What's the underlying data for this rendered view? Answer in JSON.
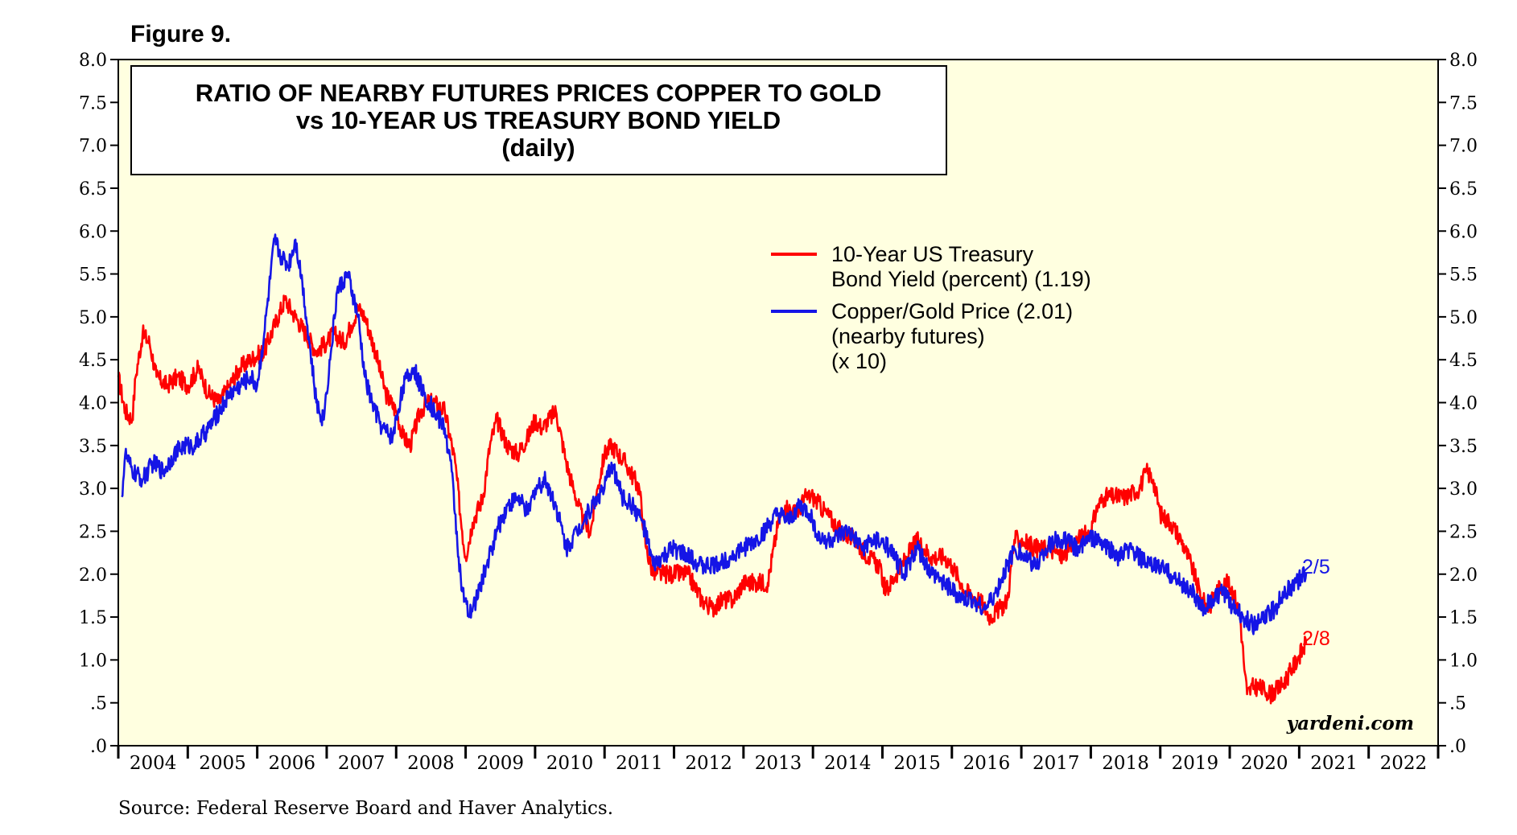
{
  "figure_label": "Figure 9.",
  "title_lines": [
    "RATIO OF NEARBY FUTURES PRICES COPPER TO GOLD",
    "vs 10-YEAR US TREASURY BOND YIELD",
    "(daily)"
  ],
  "legend": {
    "yield_lines": [
      "10-Year US Treasury",
      "Bond Yield (percent) (1.19)"
    ],
    "copper_lines": [
      "Copper/Gold Price (2.01)",
      "(nearby futures)",
      "(x 10)"
    ]
  },
  "end_labels": {
    "copper": "2/5",
    "yield": "2/8"
  },
  "watermark": "yardeni.com",
  "source": "Source: Federal Reserve Board and Haver Analytics.",
  "colors": {
    "yield": "#ff0000",
    "copper": "#1515e6",
    "plot_bg": "#ffffe0"
  },
  "chart_data": {
    "type": "line",
    "title": "RATIO OF NEARBY FUTURES PRICES COPPER TO GOLD vs 10-YEAR US TREASURY BOND YIELD (daily)",
    "xlim": [
      2004,
      2023
    ],
    "ylim": [
      0,
      8
    ],
    "y_ticks": [
      0,
      0.5,
      1,
      1.5,
      2,
      2.5,
      3,
      3.5,
      4,
      4.5,
      5,
      5.5,
      6,
      6.5,
      7,
      7.5,
      8
    ],
    "y_tick_labels": [
      ".0",
      ".5",
      "1.0",
      "1.5",
      "2.0",
      "2.5",
      "3.0",
      "3.5",
      "4.0",
      "4.5",
      "5.0",
      "5.5",
      "6.0",
      "6.5",
      "7.0",
      "7.5",
      "8.0"
    ],
    "x_tick_labels": [
      "2004",
      "2005",
      "2006",
      "2007",
      "2008",
      "2009",
      "2010",
      "2011",
      "2012",
      "2013",
      "2014",
      "2015",
      "2016",
      "2017",
      "2018",
      "2019",
      "2020",
      "2021",
      "2022"
    ],
    "grid": false,
    "legend_position": "upper-middle",
    "series": [
      {
        "name": "10-Year US Treasury Bond Yield (percent) (1.19)",
        "color": "#ff0000",
        "x": [
          2004.0,
          2004.1,
          2004.2,
          2004.25,
          2004.35,
          2004.45,
          2004.55,
          2004.7,
          2004.85,
          2005.0,
          2005.15,
          2005.3,
          2005.45,
          2005.6,
          2005.75,
          2005.9,
          2006.1,
          2006.25,
          2006.4,
          2006.55,
          2006.7,
          2006.85,
          2007.0,
          2007.1,
          2007.25,
          2007.35,
          2007.45,
          2007.55,
          2007.7,
          2007.85,
          2008.0,
          2008.1,
          2008.2,
          2008.35,
          2008.45,
          2008.55,
          2008.7,
          2008.85,
          2008.95,
          2009.0,
          2009.1,
          2009.25,
          2009.35,
          2009.45,
          2009.6,
          2009.75,
          2009.9,
          2010.0,
          2010.1,
          2010.3,
          2010.45,
          2010.55,
          2010.7,
          2010.8,
          2010.9,
          2011.0,
          2011.1,
          2011.3,
          2011.5,
          2011.6,
          2011.7,
          2011.85,
          2012.0,
          2012.2,
          2012.4,
          2012.55,
          2012.7,
          2012.85,
          2013.0,
          2013.2,
          2013.35,
          2013.5,
          2013.6,
          2013.75,
          2013.9,
          2014.0,
          2014.2,
          2014.4,
          2014.6,
          2014.8,
          2014.95,
          2015.05,
          2015.2,
          2015.35,
          2015.5,
          2015.7,
          2015.9,
          2016.0,
          2016.2,
          2016.4,
          2016.55,
          2016.7,
          2016.8,
          2016.9,
          2017.0,
          2017.2,
          2017.4,
          2017.6,
          2017.8,
          2018.0,
          2018.1,
          2018.2,
          2018.35,
          2018.5,
          2018.7,
          2018.8,
          2018.9,
          2019.0,
          2019.15,
          2019.3,
          2019.45,
          2019.6,
          2019.7,
          2019.8,
          2019.95,
          2020.05,
          2020.15,
          2020.2,
          2020.25,
          2020.35,
          2020.5,
          2020.6,
          2020.75,
          2020.9,
          2021.0,
          2021.1
        ],
        "y": [
          4.3,
          3.9,
          3.8,
          4.3,
          4.8,
          4.7,
          4.3,
          4.2,
          4.3,
          4.2,
          4.4,
          4.1,
          4.0,
          4.2,
          4.4,
          4.5,
          4.6,
          4.9,
          5.2,
          5.0,
          4.8,
          4.6,
          4.7,
          4.8,
          4.7,
          4.9,
          5.1,
          5.0,
          4.6,
          4.1,
          3.9,
          3.6,
          3.5,
          3.9,
          4.0,
          4.0,
          3.9,
          3.3,
          2.5,
          2.2,
          2.6,
          2.9,
          3.5,
          3.8,
          3.5,
          3.4,
          3.6,
          3.8,
          3.7,
          3.9,
          3.3,
          3.0,
          2.6,
          2.5,
          3.0,
          3.4,
          3.5,
          3.3,
          3.0,
          2.3,
          2.0,
          2.0,
          2.0,
          2.0,
          1.7,
          1.6,
          1.7,
          1.7,
          1.9,
          1.9,
          1.9,
          2.6,
          2.8,
          2.7,
          2.9,
          2.9,
          2.7,
          2.5,
          2.4,
          2.2,
          2.1,
          1.8,
          2.0,
          2.2,
          2.4,
          2.2,
          2.2,
          2.1,
          1.8,
          1.7,
          1.5,
          1.6,
          1.7,
          2.4,
          2.4,
          2.3,
          2.3,
          2.2,
          2.4,
          2.5,
          2.8,
          2.9,
          2.9,
          2.9,
          3.0,
          3.2,
          3.1,
          2.7,
          2.6,
          2.4,
          2.1,
          1.7,
          1.6,
          1.8,
          1.9,
          1.8,
          1.5,
          1.0,
          0.6,
          0.7,
          0.65,
          0.6,
          0.7,
          0.9,
          1.05,
          1.19
        ]
      },
      {
        "name": "Copper/Gold Price (2.01) (nearby futures) (x 10)",
        "color": "#1515e6",
        "x": [
          2004.05,
          2004.1,
          2004.2,
          2004.35,
          2004.5,
          2004.65,
          2004.8,
          2004.95,
          2005.1,
          2005.3,
          2005.45,
          2005.6,
          2005.75,
          2005.9,
          2006.0,
          2006.1,
          2006.25,
          2006.35,
          2006.45,
          2006.55,
          2006.65,
          2006.75,
          2006.85,
          2006.95,
          2007.05,
          2007.15,
          2007.3,
          2007.45,
          2007.55,
          2007.65,
          2007.8,
          2007.95,
          2008.1,
          2008.25,
          2008.4,
          2008.55,
          2008.7,
          2008.8,
          2008.9,
          2008.95,
          2009.05,
          2009.15,
          2009.3,
          2009.45,
          2009.6,
          2009.75,
          2009.9,
          2010.0,
          2010.15,
          2010.3,
          2010.45,
          2010.6,
          2010.75,
          2010.9,
          2011.0,
          2011.1,
          2011.25,
          2011.4,
          2011.55,
          2011.7,
          2011.85,
          2012.0,
          2012.2,
          2012.4,
          2012.6,
          2012.8,
          2013.0,
          2013.2,
          2013.4,
          2013.5,
          2013.65,
          2013.8,
          2013.95,
          2014.1,
          2014.3,
          2014.5,
          2014.7,
          2014.9,
          2015.1,
          2015.3,
          2015.5,
          2015.7,
          2015.9,
          2016.0,
          2016.15,
          2016.3,
          2016.5,
          2016.65,
          2016.8,
          2016.9,
          2017.05,
          2017.2,
          2017.35,
          2017.5,
          2017.65,
          2017.8,
          2017.95,
          2018.1,
          2018.25,
          2018.4,
          2018.55,
          2018.7,
          2018.85,
          2019.0,
          2019.15,
          2019.3,
          2019.45,
          2019.6,
          2019.75,
          2019.9,
          2020.05,
          2020.2,
          2020.35,
          2020.5,
          2020.65,
          2020.8,
          2020.95,
          2021.1
        ],
        "y": [
          2.9,
          3.4,
          3.2,
          3.1,
          3.3,
          3.2,
          3.4,
          3.5,
          3.5,
          3.7,
          3.9,
          4.1,
          4.2,
          4.3,
          4.2,
          4.8,
          5.9,
          5.7,
          5.6,
          5.9,
          5.4,
          4.7,
          4.0,
          3.8,
          4.5,
          5.3,
          5.5,
          5.0,
          4.3,
          4.0,
          3.7,
          3.6,
          4.2,
          4.4,
          4.1,
          3.9,
          3.7,
          3.2,
          2.2,
          1.8,
          1.5,
          1.7,
          2.1,
          2.5,
          2.8,
          2.9,
          2.7,
          3.0,
          3.1,
          2.8,
          2.3,
          2.5,
          2.7,
          2.9,
          3.0,
          3.3,
          2.9,
          2.8,
          2.6,
          2.1,
          2.2,
          2.3,
          2.2,
          2.1,
          2.1,
          2.2,
          2.3,
          2.4,
          2.6,
          2.7,
          2.6,
          2.8,
          2.7,
          2.4,
          2.4,
          2.5,
          2.3,
          2.4,
          2.3,
          2.0,
          2.3,
          2.0,
          1.9,
          1.8,
          1.7,
          1.7,
          1.6,
          1.8,
          2.1,
          2.3,
          2.2,
          2.1,
          2.3,
          2.4,
          2.4,
          2.3,
          2.4,
          2.4,
          2.3,
          2.2,
          2.3,
          2.2,
          2.1,
          2.1,
          2.0,
          1.9,
          1.8,
          1.6,
          1.7,
          1.8,
          1.6,
          1.5,
          1.4,
          1.5,
          1.6,
          1.8,
          1.9,
          2.01
        ]
      }
    ]
  }
}
